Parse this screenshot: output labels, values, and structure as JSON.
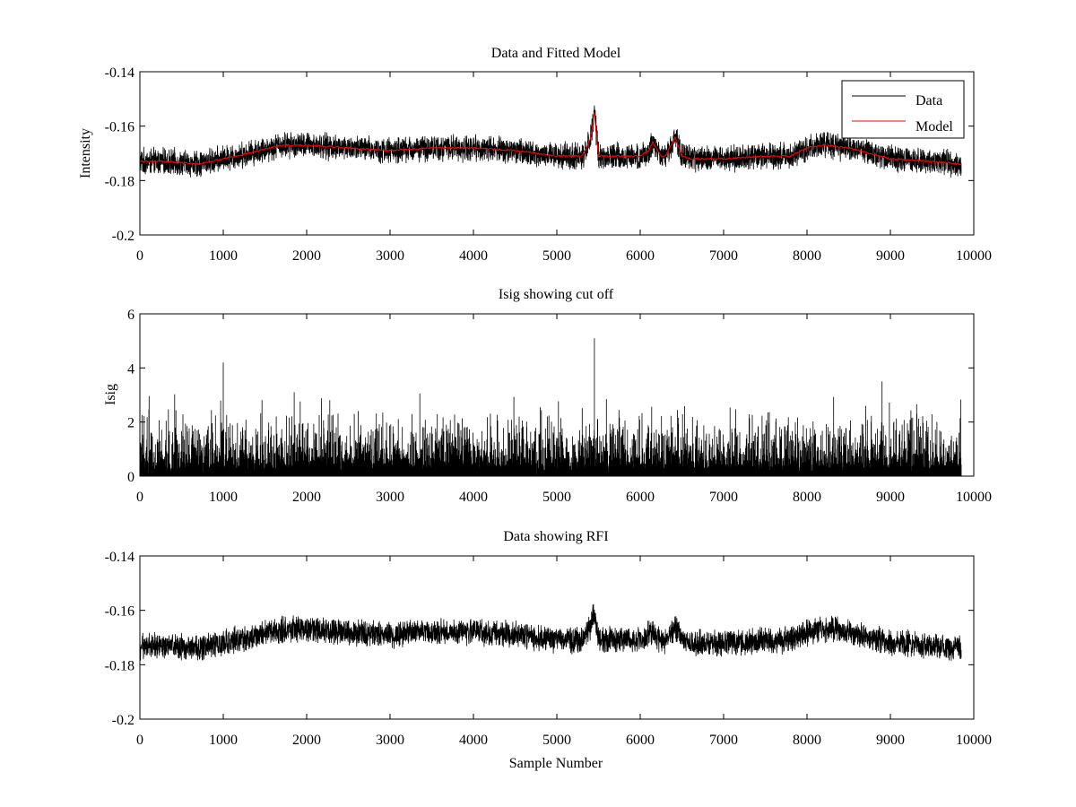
{
  "chart_data": [
    {
      "type": "line",
      "title": "Data and Fitted Model",
      "xlabel": "",
      "ylabel": "Intensity",
      "xlim": [
        0,
        10000
      ],
      "ylim": [
        -0.2,
        -0.14
      ],
      "xticks": [
        0,
        1000,
        2000,
        3000,
        4000,
        5000,
        6000,
        7000,
        8000,
        9000,
        10000
      ],
      "xtick_labels": [
        "0",
        "1000",
        "2000",
        "3000",
        "4000",
        "5000",
        "6000",
        "7000",
        "8000",
        "9000",
        "10000"
      ],
      "yticks": [
        -0.2,
        -0.18,
        -0.16,
        -0.14
      ],
      "ytick_labels": [
        "-0.2",
        "-0.18",
        "-0.16",
        "-0.14"
      ],
      "legend": {
        "position": "top-right",
        "entries": [
          "Data",
          "Model"
        ]
      },
      "series": [
        {
          "name": "Data",
          "color": "#000000",
          "kind": "noisy",
          "n_points": 9850,
          "noise_amplitude": 0.004,
          "x": [
            0,
            300,
            700,
            1000,
            1300,
            1700,
            2000,
            2500,
            3000,
            3500,
            4000,
            4500,
            5000,
            5300,
            5400,
            5450,
            5500,
            5600,
            6000,
            6100,
            6150,
            6250,
            6300,
            6350,
            6420,
            6500,
            6600,
            7000,
            7500,
            7800,
            8000,
            8200,
            8500,
            9000,
            9500,
            9850
          ],
          "values": [
            -0.173,
            -0.173,
            -0.174,
            -0.172,
            -0.17,
            -0.167,
            -0.167,
            -0.168,
            -0.169,
            -0.168,
            -0.168,
            -0.169,
            -0.171,
            -0.171,
            -0.165,
            -0.155,
            -0.171,
            -0.171,
            -0.171,
            -0.169,
            -0.166,
            -0.171,
            -0.171,
            -0.168,
            -0.164,
            -0.171,
            -0.172,
            -0.172,
            -0.171,
            -0.171,
            -0.168,
            -0.167,
            -0.168,
            -0.172,
            -0.173,
            -0.174
          ]
        },
        {
          "name": "Model",
          "color": "#ff0000",
          "kind": "line",
          "x": [
            0,
            300,
            700,
            1000,
            1300,
            1700,
            2000,
            2500,
            3000,
            3500,
            4000,
            4500,
            5000,
            5300,
            5400,
            5450,
            5500,
            5600,
            6000,
            6100,
            6150,
            6250,
            6300,
            6350,
            6420,
            6500,
            6600,
            7000,
            7500,
            7800,
            8000,
            8200,
            8500,
            9000,
            9500,
            9850
          ],
          "values": [
            -0.173,
            -0.173,
            -0.174,
            -0.172,
            -0.17,
            -0.167,
            -0.167,
            -0.168,
            -0.169,
            -0.168,
            -0.168,
            -0.169,
            -0.171,
            -0.171,
            -0.165,
            -0.155,
            -0.171,
            -0.171,
            -0.171,
            -0.169,
            -0.166,
            -0.171,
            -0.171,
            -0.168,
            -0.164,
            -0.171,
            -0.172,
            -0.172,
            -0.171,
            -0.171,
            -0.168,
            -0.167,
            -0.168,
            -0.172,
            -0.173,
            -0.174
          ]
        }
      ]
    },
    {
      "type": "line",
      "title": "Isig showing cut off",
      "xlabel": "",
      "ylabel": "Isig",
      "xlim": [
        0,
        10000
      ],
      "ylim": [
        0,
        6
      ],
      "xticks": [
        0,
        1000,
        2000,
        3000,
        4000,
        5000,
        6000,
        7000,
        8000,
        9000,
        10000
      ],
      "xtick_labels": [
        "0",
        "1000",
        "2000",
        "3000",
        "4000",
        "5000",
        "6000",
        "7000",
        "8000",
        "9000",
        "10000"
      ],
      "yticks": [
        0,
        2,
        4,
        6
      ],
      "ytick_labels": [
        "0",
        "2",
        "4",
        "6"
      ],
      "series": [
        {
          "name": "Isig",
          "color": "#000000",
          "kind": "spikes",
          "n_points": 9850,
          "typical_max": 2.2,
          "peaks": [
            {
              "x": 1000,
              "value": 4.2
            },
            {
              "x": 1850,
              "value": 3.1
            },
            {
              "x": 5450,
              "value": 5.1
            },
            {
              "x": 8900,
              "value": 3.5
            }
          ]
        }
      ]
    },
    {
      "type": "line",
      "title": "Data showing RFI",
      "xlabel": "Sample Number",
      "ylabel": "",
      "xlim": [
        0,
        10000
      ],
      "ylim": [
        -0.2,
        -0.14
      ],
      "xticks": [
        0,
        1000,
        2000,
        3000,
        4000,
        5000,
        6000,
        7000,
        8000,
        9000,
        10000
      ],
      "xtick_labels": [
        "0",
        "1000",
        "2000",
        "3000",
        "4000",
        "5000",
        "6000",
        "7000",
        "8000",
        "9000",
        "10000"
      ],
      "yticks": [
        -0.2,
        -0.18,
        -0.16,
        -0.14
      ],
      "ytick_labels": [
        "-0.2",
        "-0.18",
        "-0.16",
        "-0.14"
      ],
      "series": [
        {
          "name": "Data",
          "color": "#000000",
          "kind": "noisy",
          "n_points": 9850,
          "noise_amplitude": 0.004,
          "x": [
            0,
            300,
            700,
            1000,
            1300,
            1700,
            2000,
            2500,
            3000,
            3500,
            4000,
            4500,
            5000,
            5300,
            5400,
            5450,
            5500,
            5600,
            6000,
            6100,
            6150,
            6250,
            6300,
            6350,
            6420,
            6500,
            6600,
            7000,
            7500,
            7800,
            8000,
            8200,
            8500,
            9000,
            9500,
            9850
          ],
          "values": [
            -0.173,
            -0.173,
            -0.174,
            -0.172,
            -0.17,
            -0.167,
            -0.167,
            -0.168,
            -0.169,
            -0.168,
            -0.168,
            -0.169,
            -0.171,
            -0.171,
            -0.166,
            -0.161,
            -0.171,
            -0.171,
            -0.171,
            -0.169,
            -0.168,
            -0.171,
            -0.171,
            -0.169,
            -0.166,
            -0.171,
            -0.172,
            -0.172,
            -0.171,
            -0.171,
            -0.168,
            -0.167,
            -0.168,
            -0.172,
            -0.173,
            -0.174
          ]
        }
      ]
    }
  ]
}
